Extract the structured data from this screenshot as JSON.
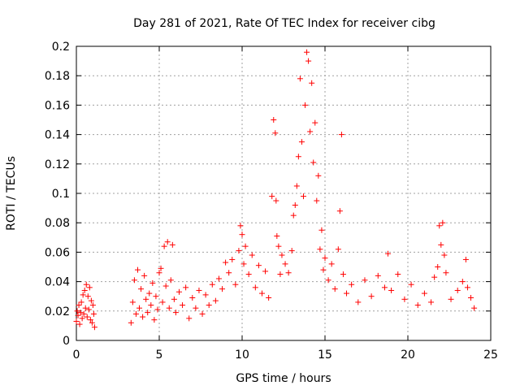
{
  "chart_data": {
    "type": "scatter",
    "title": "Day 281 of 2021, Rate Of TEC Index for receiver cibg",
    "xlabel": "GPS time / hours",
    "ylabel": "ROTI / TECUs",
    "xlim": [
      0,
      25
    ],
    "ylim": [
      0,
      0.2
    ],
    "grid": true,
    "marker": "+",
    "color": "#ff0000",
    "x_ticks": [
      "0",
      "5",
      "10",
      "15",
      "20",
      "25"
    ],
    "y_ticks": [
      "0",
      "0.02",
      "0.04",
      "0.06",
      "0.08",
      "0.1",
      "0.12",
      "0.14",
      "0.16",
      "0.18",
      "0.2"
    ],
    "series": [
      {
        "name": "ROTI",
        "points": [
          [
            0.0,
            0.013
          ],
          [
            0.05,
            0.02
          ],
          [
            0.1,
            0.017
          ],
          [
            0.15,
            0.024
          ],
          [
            0.2,
            0.011
          ],
          [
            0.25,
            0.019
          ],
          [
            0.3,
            0.026
          ],
          [
            0.35,
            0.015
          ],
          [
            0.4,
            0.031
          ],
          [
            0.45,
            0.018
          ],
          [
            0.5,
            0.034
          ],
          [
            0.55,
            0.022
          ],
          [
            0.6,
            0.038
          ],
          [
            0.65,
            0.016
          ],
          [
            0.7,
            0.03
          ],
          [
            0.75,
            0.021
          ],
          [
            0.8,
            0.036
          ],
          [
            0.85,
            0.014
          ],
          [
            0.9,
            0.027
          ],
          [
            0.95,
            0.012
          ],
          [
            1.0,
            0.024
          ],
          [
            1.05,
            0.018
          ],
          [
            1.1,
            0.009
          ],
          [
            3.3,
            0.012
          ],
          [
            3.4,
            0.026
          ],
          [
            3.5,
            0.041
          ],
          [
            3.6,
            0.018
          ],
          [
            3.7,
            0.048
          ],
          [
            3.8,
            0.022
          ],
          [
            3.9,
            0.035
          ],
          [
            4.0,
            0.016
          ],
          [
            4.1,
            0.044
          ],
          [
            4.2,
            0.028
          ],
          [
            4.3,
            0.019
          ],
          [
            4.4,
            0.032
          ],
          [
            4.5,
            0.024
          ],
          [
            4.6,
            0.039
          ],
          [
            4.7,
            0.014
          ],
          [
            4.8,
            0.03
          ],
          [
            4.9,
            0.021
          ],
          [
            5.0,
            0.046
          ],
          [
            5.1,
            0.049
          ],
          [
            5.2,
            0.026
          ],
          [
            5.3,
            0.064
          ],
          [
            5.4,
            0.037
          ],
          [
            5.5,
            0.067
          ],
          [
            5.6,
            0.022
          ],
          [
            5.7,
            0.041
          ],
          [
            5.8,
            0.065
          ],
          [
            5.9,
            0.028
          ],
          [
            6.0,
            0.019
          ],
          [
            6.2,
            0.033
          ],
          [
            6.4,
            0.024
          ],
          [
            6.6,
            0.036
          ],
          [
            6.8,
            0.015
          ],
          [
            7.0,
            0.029
          ],
          [
            7.2,
            0.022
          ],
          [
            7.4,
            0.034
          ],
          [
            7.6,
            0.018
          ],
          [
            7.8,
            0.031
          ],
          [
            8.0,
            0.024
          ],
          [
            8.2,
            0.038
          ],
          [
            8.4,
            0.027
          ],
          [
            8.6,
            0.042
          ],
          [
            8.8,
            0.035
          ],
          [
            9.0,
            0.053
          ],
          [
            9.2,
            0.046
          ],
          [
            9.4,
            0.055
          ],
          [
            9.6,
            0.038
          ],
          [
            9.8,
            0.061
          ],
          [
            9.9,
            0.078
          ],
          [
            10.0,
            0.072
          ],
          [
            10.1,
            0.052
          ],
          [
            10.2,
            0.064
          ],
          [
            10.4,
            0.045
          ],
          [
            10.6,
            0.058
          ],
          [
            10.8,
            0.036
          ],
          [
            11.0,
            0.051
          ],
          [
            11.2,
            0.032
          ],
          [
            11.4,
            0.047
          ],
          [
            11.6,
            0.029
          ],
          [
            11.8,
            0.098
          ],
          [
            11.9,
            0.15
          ],
          [
            12.0,
            0.141
          ],
          [
            12.05,
            0.095
          ],
          [
            12.1,
            0.071
          ],
          [
            12.2,
            0.064
          ],
          [
            12.3,
            0.045
          ],
          [
            12.4,
            0.058
          ],
          [
            12.6,
            0.052
          ],
          [
            12.8,
            0.046
          ],
          [
            13.0,
            0.061
          ],
          [
            13.1,
            0.085
          ],
          [
            13.2,
            0.092
          ],
          [
            13.3,
            0.105
          ],
          [
            13.4,
            0.125
          ],
          [
            13.5,
            0.178
          ],
          [
            13.6,
            0.135
          ],
          [
            13.7,
            0.098
          ],
          [
            13.8,
            0.16
          ],
          [
            13.9,
            0.196
          ],
          [
            14.0,
            0.19
          ],
          [
            14.1,
            0.142
          ],
          [
            14.2,
            0.175
          ],
          [
            14.3,
            0.121
          ],
          [
            14.4,
            0.148
          ],
          [
            14.5,
            0.095
          ],
          [
            14.6,
            0.112
          ],
          [
            14.7,
            0.062
          ],
          [
            14.8,
            0.075
          ],
          [
            14.9,
            0.048
          ],
          [
            15.0,
            0.056
          ],
          [
            15.2,
            0.041
          ],
          [
            15.4,
            0.052
          ],
          [
            15.6,
            0.035
          ],
          [
            15.8,
            0.062
          ],
          [
            15.9,
            0.088
          ],
          [
            16.0,
            0.14
          ],
          [
            16.1,
            0.045
          ],
          [
            16.3,
            0.032
          ],
          [
            16.6,
            0.038
          ],
          [
            17.0,
            0.026
          ],
          [
            17.4,
            0.041
          ],
          [
            17.8,
            0.03
          ],
          [
            18.2,
            0.044
          ],
          [
            18.6,
            0.036
          ],
          [
            18.8,
            0.059
          ],
          [
            19.0,
            0.034
          ],
          [
            19.4,
            0.045
          ],
          [
            19.8,
            0.028
          ],
          [
            20.2,
            0.038
          ],
          [
            20.6,
            0.024
          ],
          [
            21.0,
            0.032
          ],
          [
            21.4,
            0.026
          ],
          [
            21.6,
            0.043
          ],
          [
            21.8,
            0.05
          ],
          [
            21.9,
            0.078
          ],
          [
            22.0,
            0.065
          ],
          [
            22.1,
            0.08
          ],
          [
            22.2,
            0.058
          ],
          [
            22.3,
            0.046
          ],
          [
            22.6,
            0.028
          ],
          [
            23.0,
            0.034
          ],
          [
            23.3,
            0.04
          ],
          [
            23.5,
            0.055
          ],
          [
            23.6,
            0.036
          ],
          [
            23.8,
            0.029
          ],
          [
            24.0,
            0.022
          ]
        ]
      }
    ]
  }
}
